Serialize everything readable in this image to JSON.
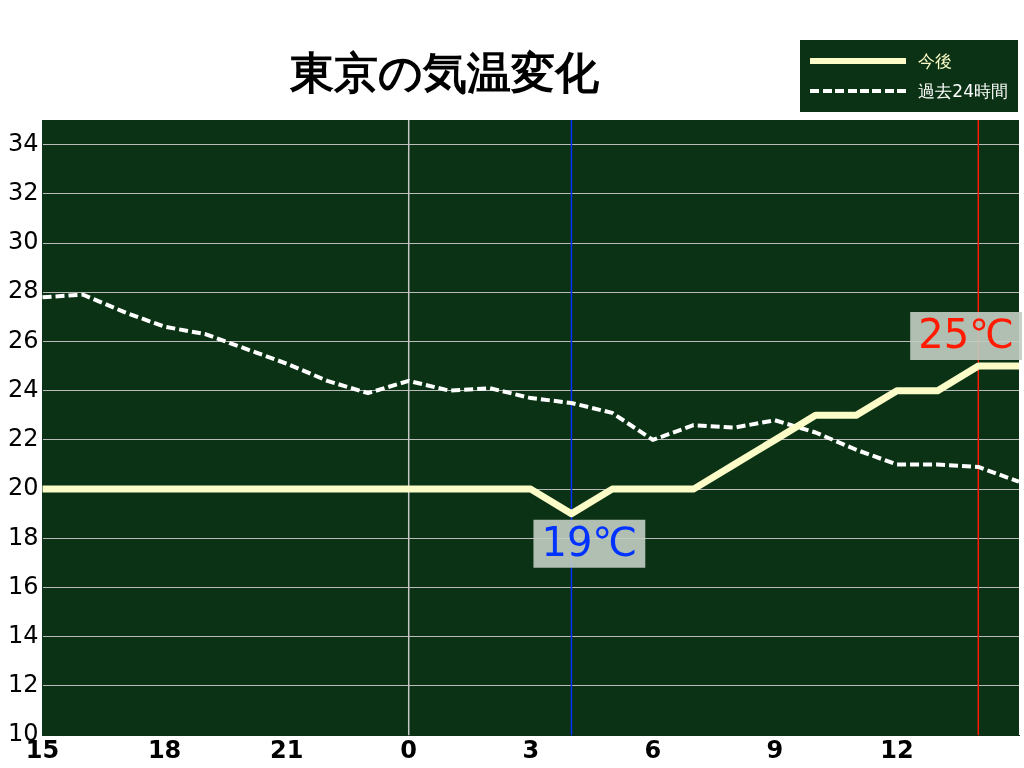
{
  "chart_data": {
    "type": "line",
    "title": "東京の気温変化",
    "categories": [
      "15",
      null,
      null,
      "18",
      null,
      null,
      "21",
      null,
      null,
      "0",
      null,
      null,
      "3",
      null,
      null,
      "6",
      null,
      null,
      "9",
      null,
      null,
      "12",
      null,
      null,
      null
    ],
    "series": [
      {
        "name": "今後",
        "color": "#fcfcc8",
        "line_style": "solid",
        "values": [
          20,
          20,
          20,
          20,
          20,
          20,
          20,
          20,
          20,
          20,
          20,
          20,
          20,
          19,
          20,
          20,
          20,
          21,
          22,
          23,
          23,
          24,
          24,
          25,
          25
        ]
      },
      {
        "name": "過去24時間",
        "color": "#ffffff",
        "line_style": "dashed",
        "values": [
          27.8,
          27.9,
          27.2,
          26.6,
          26.3,
          25.7,
          25.1,
          24.4,
          23.9,
          24.4,
          24.0,
          24.1,
          23.7,
          23.5,
          23.1,
          22.0,
          22.6,
          22.5,
          22.8,
          22.3,
          21.6,
          21.0,
          21.0,
          20.9,
          20.3
        ]
      }
    ],
    "ylim": [
      10,
      35
    ],
    "yticks": [
      10,
      12,
      14,
      16,
      18,
      20,
      22,
      24,
      26,
      28,
      30,
      32,
      34
    ],
    "grid": "y",
    "marker": "none",
    "legend": "top right",
    "annotations": [
      "19℃",
      "25℃"
    ]
  }
}
